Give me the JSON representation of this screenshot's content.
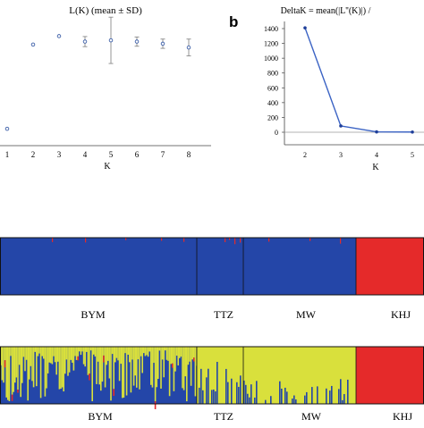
{
  "chart_data": [
    {
      "type": "scatter",
      "title": "L(K) (mean ± SD)",
      "xlabel": "K",
      "ylabel": "",
      "categories": [
        "1",
        "2",
        "3",
        "4",
        "5",
        "6",
        "7",
        "8"
      ],
      "x": [
        1,
        2,
        3,
        4,
        5,
        6,
        7,
        8
      ],
      "series": [
        {
          "values": [
            -48000,
            -28000,
            -26000,
            -27300,
            -27000,
            -27300,
            -27800,
            -28700
          ],
          "sd": [
            0,
            0,
            0,
            1200,
            5500,
            1100,
            1100,
            2000
          ]
        }
      ],
      "ylim": [
        -52000,
        -24000
      ],
      "grid": false,
      "colors": {
        "mean": "#3d5fa8",
        "sd": "#8a8a8a"
      }
    },
    {
      "type": "line",
      "panel": "b",
      "title": "DeltaK = mean(|L''(K)|) /",
      "xlabel": "K",
      "ylabel": "",
      "x": [
        2,
        3,
        4,
        5
      ],
      "series": [
        {
          "values": [
            1410,
            85,
            5,
            3
          ]
        }
      ],
      "yticks": [
        0,
        200,
        400,
        600,
        800,
        1000,
        1200,
        1400
      ],
      "xticks": [
        "2",
        "3",
        "4",
        "5"
      ],
      "ylim": [
        -150,
        1500
      ],
      "grid": false,
      "colors": {
        "line": "#3b63c4",
        "zero_line": "#9a9a9a"
      }
    },
    {
      "type": "bar",
      "subtype": "structure-membership",
      "k": 2,
      "populations": [
        "BYM",
        "TTZ",
        "MW",
        "KHJ"
      ],
      "colors": {
        "blue": "#2446a8",
        "red": "#e52a2a",
        "yellow": "#d9e03c"
      }
    },
    {
      "type": "bar",
      "subtype": "structure-membership",
      "k": 3,
      "populations": [
        "BYM",
        "TTZ",
        "MW",
        "KHJ"
      ],
      "colors": {
        "blue": "#2446a8",
        "red": "#e52a2a",
        "yellow": "#d9e03c"
      }
    }
  ]
}
